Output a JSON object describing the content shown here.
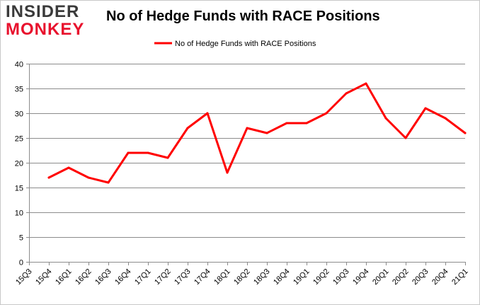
{
  "logo": {
    "line1": "INSIDER",
    "line2": "MONKEY"
  },
  "chart_data": {
    "type": "line",
    "title": "No of Hedge Funds with RACE Positions",
    "xlabel": "",
    "ylabel": "",
    "categories": [
      "15Q3",
      "15Q4",
      "16Q1",
      "16Q2",
      "16Q3",
      "16Q4",
      "17Q1",
      "17Q2",
      "17Q3",
      "17Q4",
      "18Q1",
      "18Q2",
      "18Q3",
      "18Q4",
      "19Q1",
      "19Q2",
      "19Q3",
      "19Q4",
      "20Q1",
      "20Q2",
      "20Q3",
      "20Q4",
      "21Q1"
    ],
    "series": [
      {
        "name": "No of Hedge Funds with RACE Positions",
        "color": "#ff0000",
        "values": [
          null,
          17,
          19,
          17,
          16,
          22,
          22,
          21,
          27,
          30,
          18,
          27,
          26,
          28,
          28,
          30,
          34,
          36,
          29,
          25,
          31,
          29,
          26
        ]
      }
    ],
    "ylim": [
      0,
      40
    ],
    "yticks": [
      0,
      5,
      10,
      15,
      20,
      25,
      30,
      35,
      40
    ],
    "grid": true,
    "legend": "top-center"
  }
}
